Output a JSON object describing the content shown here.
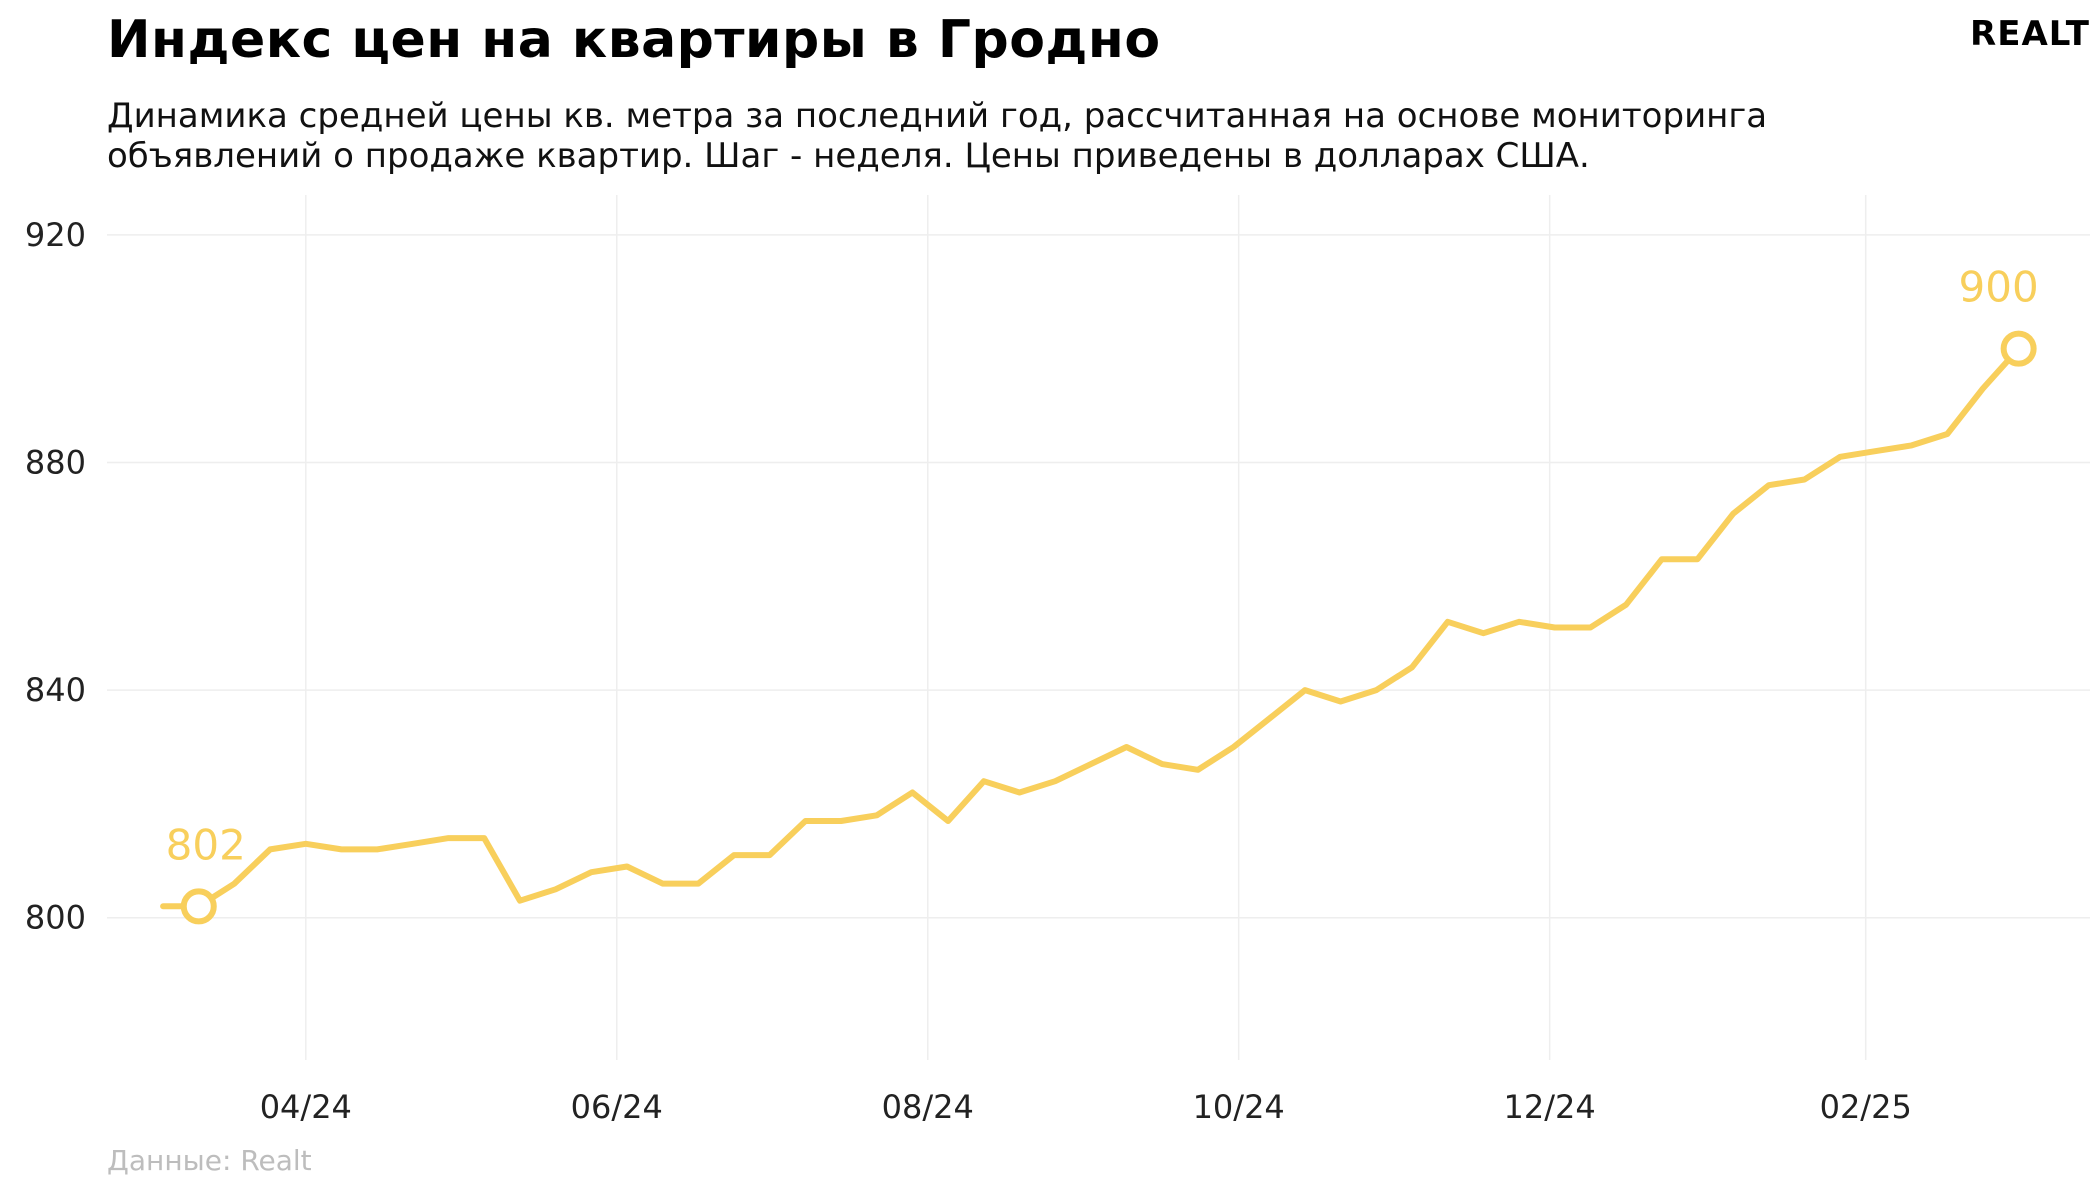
{
  "header": {
    "title": "Индекс цен на квартиры в Гродно",
    "subtitle": "Динамика средней цены кв. метра за последний год, рассчитанная на основе мониторинга объявлений о продаже квартир. Шаг - неделя. Цены приведены в долларах США.",
    "logo_text": "REALT"
  },
  "footer": {
    "source": "Данные: Realt"
  },
  "colors": {
    "line": "#f8cf5c",
    "grid": "#eeeeee",
    "background": "#ffffff"
  },
  "chart_data": {
    "type": "line",
    "title": "Индекс цен на квартиры в Гродно",
    "xlabel": "",
    "ylabel": "",
    "ylim": [
      775,
      927
    ],
    "xlim": [
      "2024-02-22",
      "2025-03-17"
    ],
    "y_ticks": [
      800,
      840,
      880,
      920
    ],
    "x_ticks": [
      {
        "date": "2024-04-01",
        "label": "04/24"
      },
      {
        "date": "2024-06-01",
        "label": "06/24"
      },
      {
        "date": "2024-08-01",
        "label": "08/24"
      },
      {
        "date": "2024-10-01",
        "label": "10/24"
      },
      {
        "date": "2024-12-01",
        "label": "12/24"
      },
      {
        "date": "2025-02-01",
        "label": "02/25"
      }
    ],
    "grid": true,
    "legend": "none",
    "series": [
      {
        "points": [
          [
            "2024-03-04",
            802
          ],
          [
            "2024-03-11",
            802
          ],
          [
            "2024-03-18",
            806
          ],
          [
            "2024-03-25",
            812
          ],
          [
            "2024-04-01",
            813
          ],
          [
            "2024-04-08",
            812
          ],
          [
            "2024-04-15",
            812
          ],
          [
            "2024-04-22",
            813
          ],
          [
            "2024-04-29",
            814
          ],
          [
            "2024-05-06",
            814
          ],
          [
            "2024-05-13",
            803
          ],
          [
            "2024-05-20",
            805
          ],
          [
            "2024-05-27",
            808
          ],
          [
            "2024-06-03",
            809
          ],
          [
            "2024-06-10",
            806
          ],
          [
            "2024-06-17",
            806
          ],
          [
            "2024-06-24",
            811
          ],
          [
            "2024-07-01",
            811
          ],
          [
            "2024-07-08",
            817
          ],
          [
            "2024-07-15",
            817
          ],
          [
            "2024-07-22",
            818
          ],
          [
            "2024-07-29",
            822
          ],
          [
            "2024-08-05",
            817
          ],
          [
            "2024-08-12",
            824
          ],
          [
            "2024-08-19",
            822
          ],
          [
            "2024-08-26",
            824
          ],
          [
            "2024-09-02",
            827
          ],
          [
            "2024-09-09",
            830
          ],
          [
            "2024-09-16",
            827
          ],
          [
            "2024-09-23",
            826
          ],
          [
            "2024-09-30",
            830
          ],
          [
            "2024-10-07",
            835
          ],
          [
            "2024-10-14",
            840
          ],
          [
            "2024-10-21",
            838
          ],
          [
            "2024-10-28",
            840
          ],
          [
            "2024-11-04",
            844
          ],
          [
            "2024-11-11",
            852
          ],
          [
            "2024-11-18",
            850
          ],
          [
            "2024-11-25",
            852
          ],
          [
            "2024-12-02",
            851
          ],
          [
            "2024-12-09",
            851
          ],
          [
            "2024-12-16",
            855
          ],
          [
            "2024-12-23",
            863
          ],
          [
            "2024-12-30",
            863
          ],
          [
            "2025-01-06",
            871
          ],
          [
            "2025-01-13",
            876
          ],
          [
            "2025-01-20",
            877
          ],
          [
            "2025-01-27",
            881
          ],
          [
            "2025-02-03",
            882
          ],
          [
            "2025-02-10",
            883
          ],
          [
            "2025-02-17",
            885
          ],
          [
            "2025-02-24",
            893
          ],
          [
            "2025-03-03",
            900
          ]
        ]
      }
    ],
    "annotations": [
      {
        "date": "2024-03-11",
        "value": 802,
        "label": "802"
      },
      {
        "date": "2025-03-03",
        "value": 900,
        "label": "900"
      }
    ]
  }
}
